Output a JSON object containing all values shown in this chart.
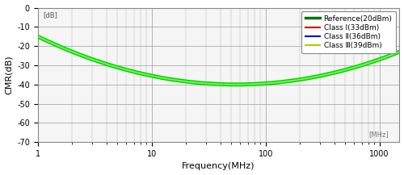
{
  "title": "",
  "xlabel": "Frequency(MHz)",
  "ylabel": "CMR(dB)",
  "xlim": [
    1,
    1500
  ],
  "ylim": [
    -70,
    0
  ],
  "yticks": [
    0,
    -10,
    -20,
    -30,
    -40,
    -50,
    -60,
    -70
  ],
  "xticks": [
    1,
    10,
    100,
    1000
  ],
  "xtick_labels": [
    "1",
    "10",
    "100",
    "1000"
  ],
  "background_color": "#ffffff",
  "plot_bg_color": "#f5f5f5",
  "grid_color": "#aaaaaa",
  "curve_color_outer": "#00cc00",
  "curve_color_inner": "#66ff44",
  "legend_entries": [
    {
      "label": "Reference(20dBm)",
      "color": "#007700",
      "lw": 2.5
    },
    {
      "label": "Class Ⅰ(33dBm)",
      "color": "#cc0000",
      "lw": 1.5
    },
    {
      "label": "Class Ⅱ(36dBm)",
      "color": "#0000cc",
      "lw": 1.5
    },
    {
      "label": "Class Ⅲ(39dBm)",
      "color": "#aacc00",
      "lw": 1.5
    }
  ],
  "watermark": "[MHz]",
  "dB_label": "[dB]",
  "freq_peak": 60,
  "val_start": -15,
  "val_min": -40,
  "val_end": -23
}
